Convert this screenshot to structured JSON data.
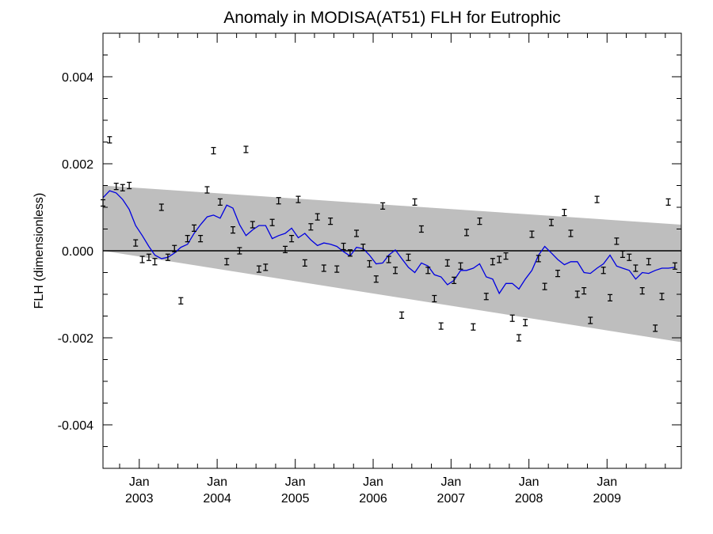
{
  "chart_data": {
    "type": "scatter",
    "title": "Anomaly in MODISA(AT51) FLH for Eutrophic",
    "ylabel": "FLH (dimensionless)",
    "xlabel": "",
    "xlim": [
      "2002-07-15",
      "2009-12-15"
    ],
    "ylim": [
      -0.005,
      0.005
    ],
    "y_ticks": [
      {
        "value": 0.004,
        "label": "0.004"
      },
      {
        "value": 0.002,
        "label": "0.002"
      },
      {
        "value": 0.0,
        "label": "0.000"
      },
      {
        "value": -0.002,
        "label": "-0.002"
      },
      {
        "value": -0.004,
        "label": "-0.004"
      }
    ],
    "x_ticks": [
      {
        "date": "2003-01-01",
        "month": "Jan",
        "year": "2003"
      },
      {
        "date": "2004-01-01",
        "month": "Jan",
        "year": "2004"
      },
      {
        "date": "2005-01-01",
        "month": "Jan",
        "year": "2005"
      },
      {
        "date": "2006-01-01",
        "month": "Jan",
        "year": "2006"
      },
      {
        "date": "2007-01-01",
        "month": "Jan",
        "year": "2007"
      },
      {
        "date": "2008-01-01",
        "month": "Jan",
        "year": "2008"
      },
      {
        "date": "2009-01-01",
        "month": "Jan",
        "year": "2009"
      }
    ],
    "reference_line": 0.0,
    "confidence_band": {
      "start": {
        "date": "2002-07-15",
        "lower": 0.0,
        "upper": 0.0015
      },
      "end": {
        "date": "2009-12-15",
        "lower": -0.0021,
        "upper": 0.0006
      },
      "color": "#bebebe"
    },
    "series": [
      {
        "style": "error_bars",
        "color": "#000000",
        "points": [
          [
            "2002-07",
            0.0011
          ],
          [
            "2002-08",
            0.00255
          ],
          [
            "2002-09",
            0.00148
          ],
          [
            "2002-10",
            0.00145
          ],
          [
            "2002-11",
            0.0015
          ],
          [
            "2002-12",
            0.00018
          ],
          [
            "2003-01",
            -0.0002
          ],
          [
            "2003-02",
            -0.00015
          ],
          [
            "2003-03",
            -0.00025
          ],
          [
            "2003-04",
            0.001
          ],
          [
            "2003-05",
            -0.00015
          ],
          [
            "2003-06",
            5e-05
          ],
          [
            "2003-07",
            -0.00115
          ],
          [
            "2003-08",
            0.00028
          ],
          [
            "2003-09",
            0.00052
          ],
          [
            "2003-10",
            0.00028
          ],
          [
            "2003-11",
            0.0014
          ],
          [
            "2003-12",
            0.0023
          ],
          [
            "2004-01",
            0.00112
          ],
          [
            "2004-02",
            -0.00025
          ],
          [
            "2004-03",
            0.00048
          ],
          [
            "2004-04",
            0.0
          ],
          [
            "2004-05",
            0.00233
          ],
          [
            "2004-06",
            0.0006
          ],
          [
            "2004-07",
            -0.00042
          ],
          [
            "2004-08",
            -0.00038
          ],
          [
            "2004-09",
            0.00065
          ],
          [
            "2004-10",
            0.00115
          ],
          [
            "2004-11",
            3e-05
          ],
          [
            "2004-12",
            0.00028
          ],
          [
            "2005-01",
            0.00118
          ],
          [
            "2005-02",
            -0.00028
          ],
          [
            "2005-03",
            0.00055
          ],
          [
            "2005-04",
            0.00078
          ],
          [
            "2005-05",
            -0.0004
          ],
          [
            "2005-06",
            0.00068
          ],
          [
            "2005-07",
            -0.00042
          ],
          [
            "2005-08",
            0.0001
          ],
          [
            "2005-09",
            -5e-05
          ],
          [
            "2005-10",
            0.0004
          ],
          [
            "2005-11",
            8e-05
          ],
          [
            "2005-12",
            -0.0003
          ],
          [
            "2006-01",
            -0.00065
          ],
          [
            "2006-02",
            0.00103
          ],
          [
            "2006-03",
            -0.0002
          ],
          [
            "2006-04",
            -0.00045
          ],
          [
            "2006-05",
            -0.00148
          ],
          [
            "2006-06",
            -0.00015
          ],
          [
            "2006-07",
            0.00112
          ],
          [
            "2006-08",
            0.0005
          ],
          [
            "2006-09",
            -0.00045
          ],
          [
            "2006-10",
            -0.0011
          ],
          [
            "2006-11",
            -0.00173
          ],
          [
            "2006-12",
            -0.00028
          ],
          [
            "2007-01",
            -0.00068
          ],
          [
            "2007-02",
            -0.00035
          ],
          [
            "2007-03",
            0.00042
          ],
          [
            "2007-04",
            -0.00175
          ],
          [
            "2007-05",
            0.00068
          ],
          [
            "2007-06",
            -0.00105
          ],
          [
            "2007-07",
            -0.00025
          ],
          [
            "2007-08",
            -0.0002
          ],
          [
            "2007-09",
            -0.00012
          ],
          [
            "2007-10",
            -0.00155
          ],
          [
            "2007-11",
            -0.002
          ],
          [
            "2007-12",
            -0.00165
          ],
          [
            "2008-01",
            0.00038
          ],
          [
            "2008-02",
            -0.00018
          ],
          [
            "2008-03",
            -0.00082
          ],
          [
            "2008-04",
            0.00065
          ],
          [
            "2008-05",
            -0.00052
          ],
          [
            "2008-06",
            0.00088
          ],
          [
            "2008-07",
            0.0004
          ],
          [
            "2008-08",
            -0.001
          ],
          [
            "2008-09",
            -0.00092
          ],
          [
            "2008-10",
            -0.0016
          ],
          [
            "2008-11",
            0.00118
          ],
          [
            "2008-12",
            -0.00045
          ],
          [
            "2009-01",
            -0.00108
          ],
          [
            "2009-02",
            0.00022
          ],
          [
            "2009-03",
            -8e-05
          ],
          [
            "2009-04",
            -0.00015
          ],
          [
            "2009-05",
            -0.0004
          ],
          [
            "2009-06",
            -0.00092
          ],
          [
            "2009-07",
            -0.00025
          ],
          [
            "2009-08",
            -0.00178
          ],
          [
            "2009-09",
            -0.00105
          ],
          [
            "2009-10",
            0.00112
          ],
          [
            "2009-11",
            -0.00035
          ]
        ]
      },
      {
        "style": "line",
        "color": "#0000e0",
        "points": [
          [
            "2002-07",
            0.00122
          ],
          [
            "2002-08",
            0.00138
          ],
          [
            "2002-09",
            0.00133
          ],
          [
            "2002-10",
            0.00118
          ],
          [
            "2002-11",
            0.00095
          ],
          [
            "2002-12",
            0.00058
          ],
          [
            "2003-01",
            0.00035
          ],
          [
            "2003-02",
            0.0001
          ],
          [
            "2003-03",
            -0.0001
          ],
          [
            "2003-04",
            -0.00018
          ],
          [
            "2003-05",
            -0.00015
          ],
          [
            "2003-06",
            -5e-05
          ],
          [
            "2003-07",
            8e-05
          ],
          [
            "2003-08",
            0.00015
          ],
          [
            "2003-09",
            0.0004
          ],
          [
            "2003-10",
            0.0006
          ],
          [
            "2003-11",
            0.00078
          ],
          [
            "2003-12",
            0.00082
          ],
          [
            "2004-01",
            0.00075
          ],
          [
            "2004-02",
            0.00105
          ],
          [
            "2004-03",
            0.00098
          ],
          [
            "2004-04",
            0.0006
          ],
          [
            "2004-05",
            0.00035
          ],
          [
            "2004-06",
            0.00048
          ],
          [
            "2004-07",
            0.00058
          ],
          [
            "2004-08",
            0.00058
          ],
          [
            "2004-09",
            0.00028
          ],
          [
            "2004-10",
            0.00035
          ],
          [
            "2004-11",
            0.0004
          ],
          [
            "2004-12",
            0.00052
          ],
          [
            "2005-01",
            0.0003
          ],
          [
            "2005-02",
            0.0004
          ],
          [
            "2005-03",
            0.00025
          ],
          [
            "2005-04",
            0.00012
          ],
          [
            "2005-05",
            0.00018
          ],
          [
            "2005-06",
            0.00015
          ],
          [
            "2005-07",
            0.0001
          ],
          [
            "2005-08",
            -2e-05
          ],
          [
            "2005-09",
            -0.00012
          ],
          [
            "2005-10",
            8e-05
          ],
          [
            "2005-11",
            5e-05
          ],
          [
            "2005-12",
            -0.0001
          ],
          [
            "2006-01",
            -0.0003
          ],
          [
            "2006-02",
            -0.00028
          ],
          [
            "2006-03",
            -0.0001
          ],
          [
            "2006-04",
            2e-05
          ],
          [
            "2006-05",
            -0.00018
          ],
          [
            "2006-06",
            -0.00038
          ],
          [
            "2006-07",
            -0.0005
          ],
          [
            "2006-08",
            -0.00028
          ],
          [
            "2006-09",
            -0.00035
          ],
          [
            "2006-10",
            -0.00055
          ],
          [
            "2006-11",
            -0.0006
          ],
          [
            "2006-12",
            -0.00078
          ],
          [
            "2007-01",
            -0.00068
          ],
          [
            "2007-02",
            -0.00045
          ],
          [
            "2007-03",
            -0.00045
          ],
          [
            "2007-04",
            -0.0004
          ],
          [
            "2007-05",
            -0.0003
          ],
          [
            "2007-06",
            -0.0006
          ],
          [
            "2007-07",
            -0.00065
          ],
          [
            "2007-08",
            -0.00098
          ],
          [
            "2007-09",
            -0.00075
          ],
          [
            "2007-10",
            -0.00075
          ],
          [
            "2007-11",
            -0.00088
          ],
          [
            "2007-12",
            -0.00065
          ],
          [
            "2008-01",
            -0.00045
          ],
          [
            "2008-02",
            -0.0001
          ],
          [
            "2008-03",
            0.0001
          ],
          [
            "2008-04",
            -5e-05
          ],
          [
            "2008-05",
            -0.0002
          ],
          [
            "2008-06",
            -0.00032
          ],
          [
            "2008-07",
            -0.00025
          ],
          [
            "2008-08",
            -0.00025
          ],
          [
            "2008-09",
            -0.0005
          ],
          [
            "2008-10",
            -0.00052
          ],
          [
            "2008-11",
            -0.0004
          ],
          [
            "2008-12",
            -0.0003
          ],
          [
            "2009-01",
            -0.0001
          ],
          [
            "2009-02",
            -0.00035
          ],
          [
            "2009-03",
            -0.0004
          ],
          [
            "2009-04",
            -0.00045
          ],
          [
            "2009-05",
            -0.00065
          ],
          [
            "2009-06",
            -0.0005
          ],
          [
            "2009-07",
            -0.00052
          ],
          [
            "2009-08",
            -0.00045
          ],
          [
            "2009-09",
            -0.0004
          ],
          [
            "2009-10",
            -0.0004
          ],
          [
            "2009-11",
            -0.00038
          ]
        ]
      }
    ]
  }
}
